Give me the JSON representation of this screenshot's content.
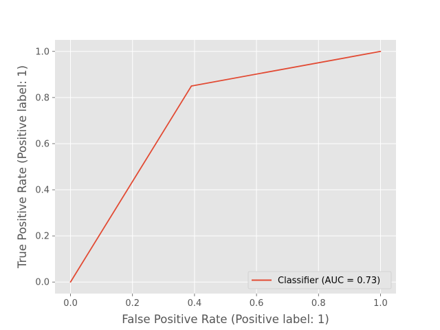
{
  "chart_data": {
    "type": "line",
    "title": "",
    "xlabel": "False Positive Rate (Positive label: 1)",
    "ylabel": "True Positive Rate (Positive label: 1)",
    "xlim": [
      -0.05,
      1.05
    ],
    "ylim": [
      -0.05,
      1.05
    ],
    "xticks": [
      0.0,
      0.2,
      0.4,
      0.6,
      0.8,
      1.0
    ],
    "yticks": [
      0.0,
      0.2,
      0.4,
      0.6,
      0.8,
      1.0
    ],
    "xtick_labels": [
      "0.0",
      "0.2",
      "0.4",
      "0.6",
      "0.8",
      "1.0"
    ],
    "ytick_labels": [
      "0.0",
      "0.2",
      "0.4",
      "0.6",
      "0.8",
      "1.0"
    ],
    "grid": true,
    "legend_position": "lower-right",
    "series": [
      {
        "name": "Classifier (AUC = 0.73)",
        "color": "#e24a33",
        "x": [
          0.0,
          0.39,
          1.0
        ],
        "y": [
          0.0,
          0.85,
          1.0
        ]
      }
    ],
    "background_color": "#e5e5e5",
    "grid_color": "#ffffff"
  }
}
